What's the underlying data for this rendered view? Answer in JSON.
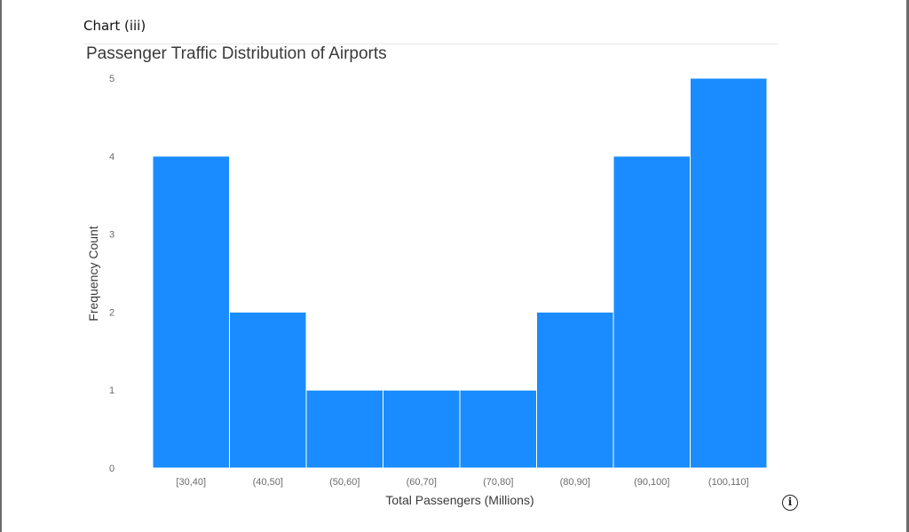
{
  "panel": {
    "label": "Chart (iii)"
  },
  "info_icon": {
    "name": "info-icon",
    "glyph": "i"
  },
  "chart_data": {
    "type": "bar",
    "title": "Passenger Traffic Distribution of Airports",
    "xlabel": "Total Passengers (Millions)",
    "ylabel": "Frequency Count",
    "categories": [
      "[30,40]",
      "(40,50]",
      "(50,60]",
      "(60,70]",
      "(70,80]",
      "(80,90]",
      "(90,100]",
      "(100,110]"
    ],
    "values": [
      4,
      2,
      1,
      1,
      1,
      2,
      4,
      5
    ],
    "yticks": [
      0,
      1,
      2,
      3,
      4,
      5
    ],
    "ylim": [
      0,
      5
    ],
    "grid": false,
    "bar_color": "#1a8cff",
    "bar_edge_color": "#ffffff"
  }
}
